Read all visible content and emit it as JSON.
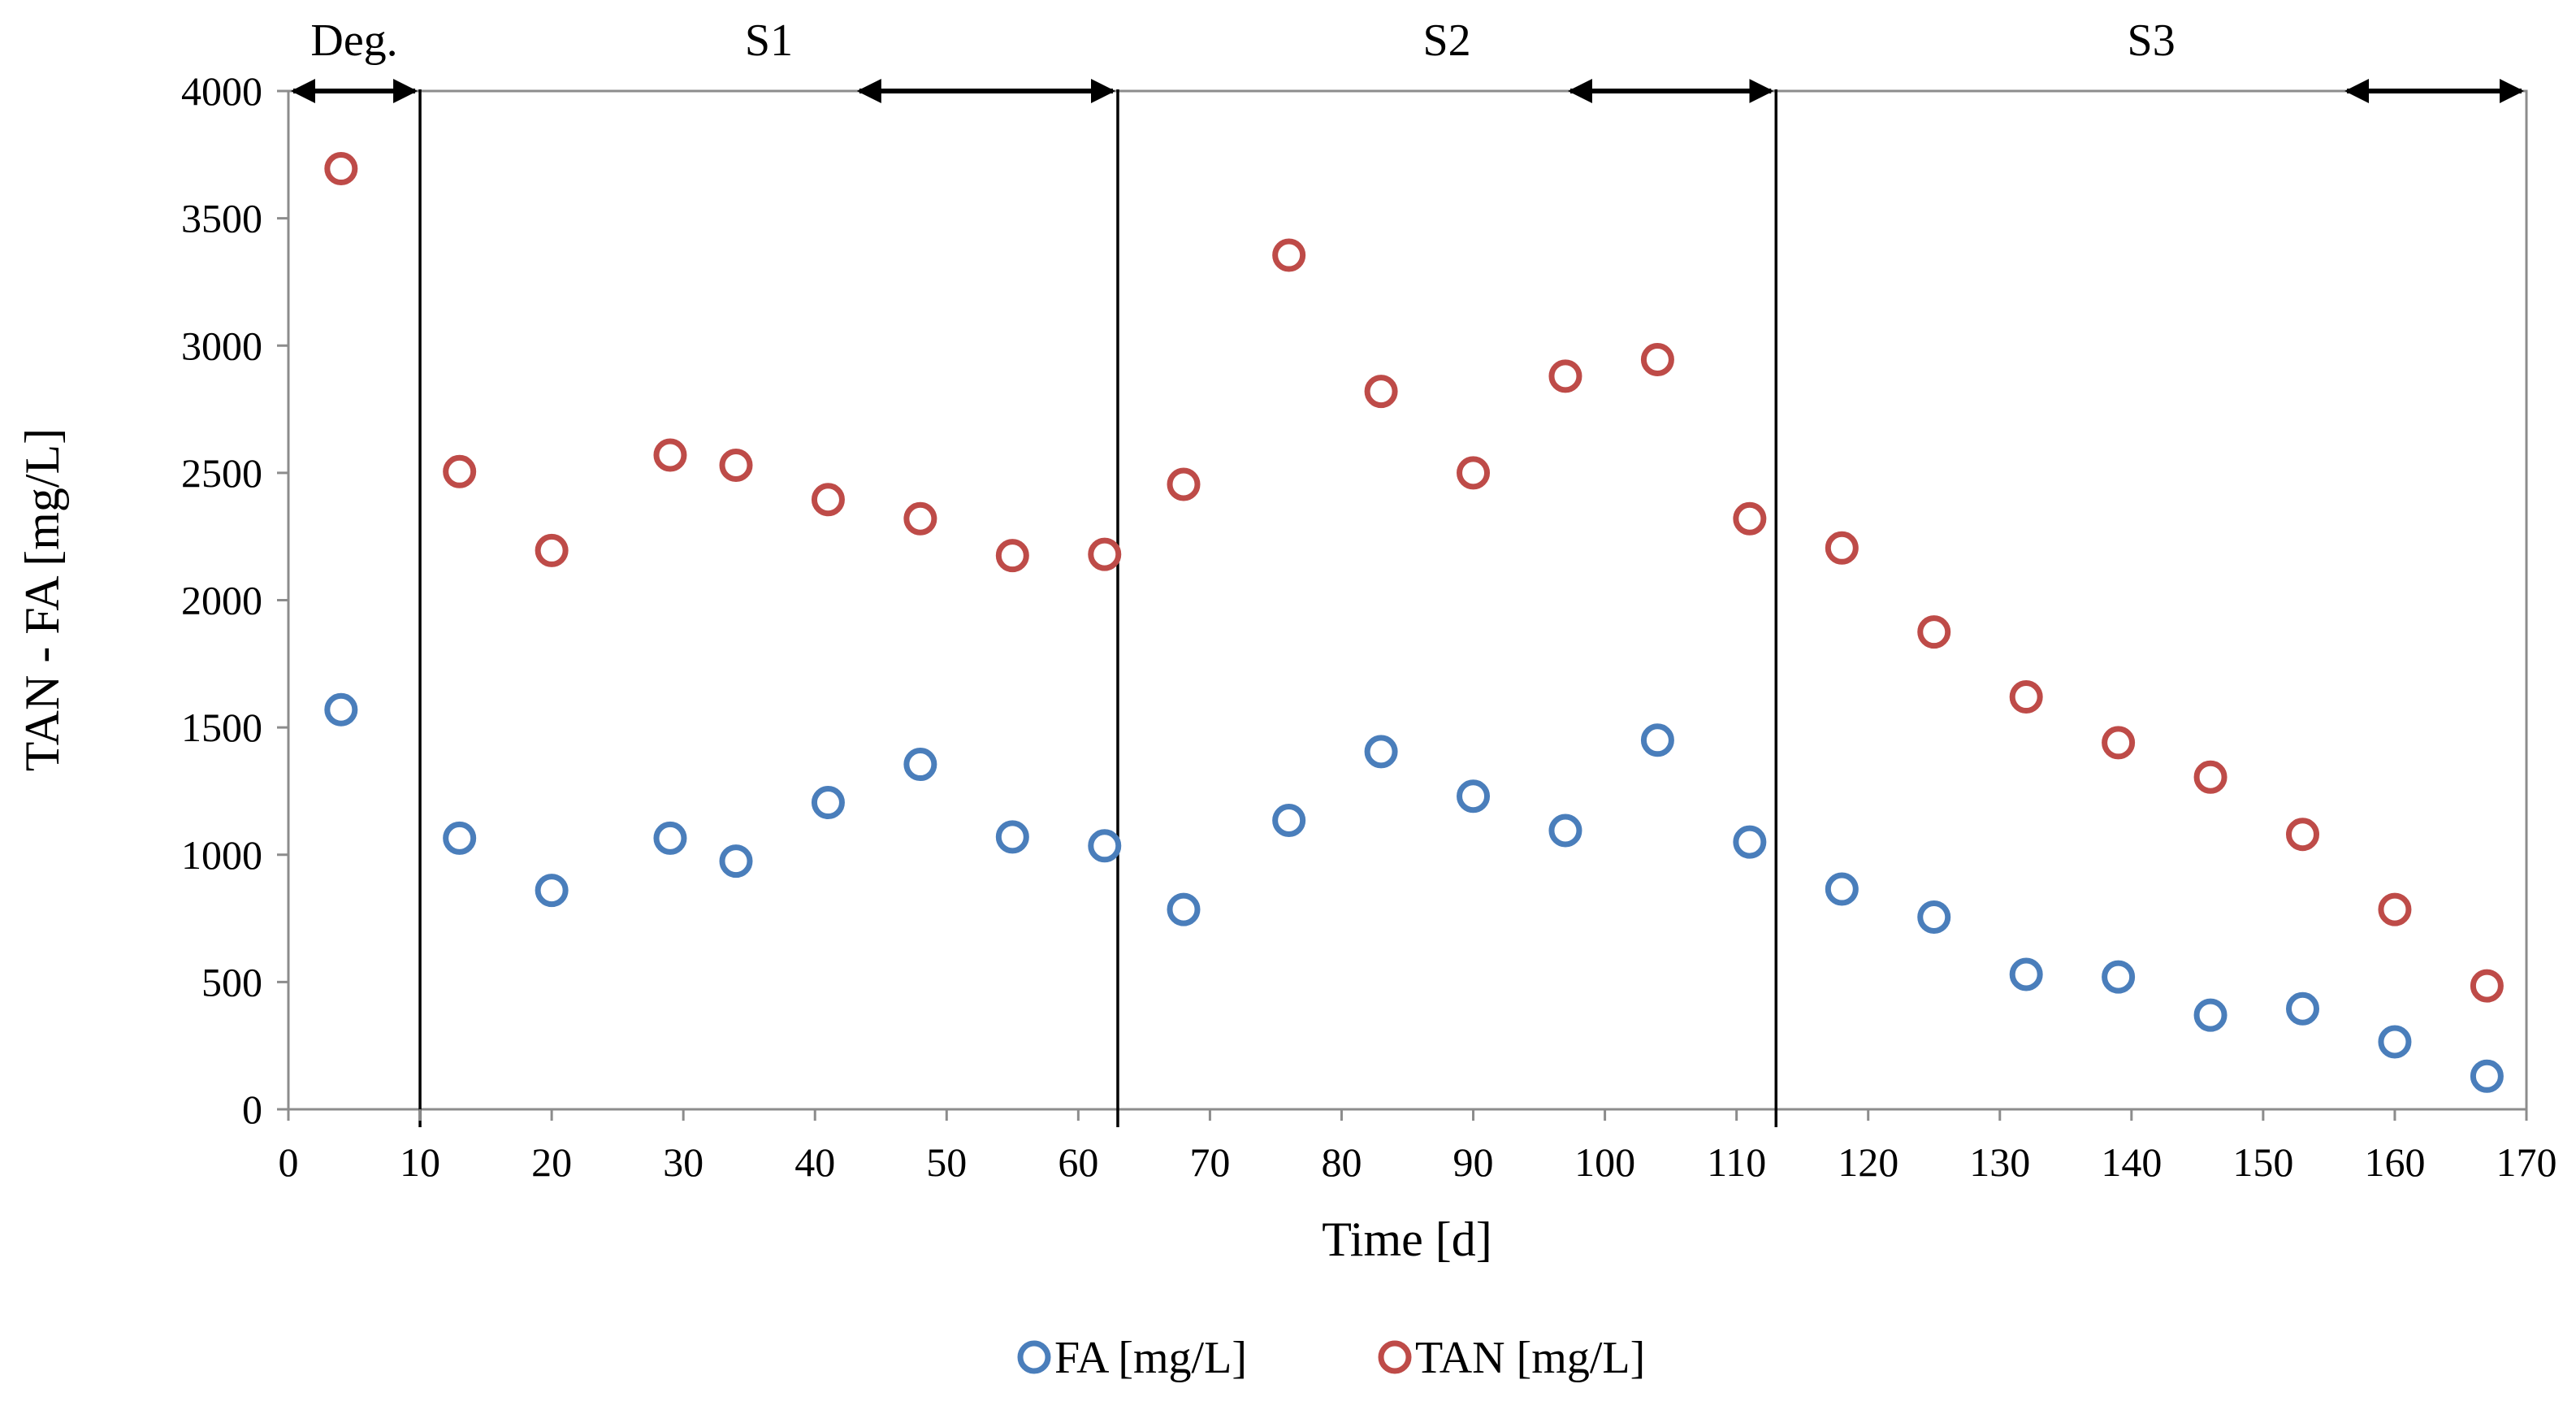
{
  "chart_data": {
    "type": "scatter",
    "title": "",
    "xlabel": "Time [d]",
    "ylabel": "TAN - FA [mg/L]",
    "xlim": [
      0,
      170
    ],
    "ylim": [
      0,
      4000
    ],
    "x_ticks": [
      "0",
      "10",
      "20",
      "30",
      "40",
      "50",
      "60",
      "70",
      "80",
      "90",
      "100",
      "110",
      "120",
      "130",
      "140",
      "150",
      "160",
      "170"
    ],
    "y_ticks": [
      "0",
      "500",
      "1000",
      "1500",
      "2000",
      "2500",
      "3000",
      "3500",
      "4000"
    ],
    "grid": false,
    "legend_position": "bottom-center",
    "series": [
      {
        "name": "FA [mg/L]",
        "color": "#4a7ebb",
        "marker": "hollow-circle",
        "points": [
          [
            4,
            1570
          ],
          [
            13,
            1065
          ],
          [
            20,
            860
          ],
          [
            29,
            1065
          ],
          [
            34,
            975
          ],
          [
            41,
            1205
          ],
          [
            48,
            1355
          ],
          [
            55,
            1070
          ],
          [
            62,
            1035
          ],
          [
            68,
            785
          ],
          [
            76,
            1135
          ],
          [
            83,
            1405
          ],
          [
            90,
            1230
          ],
          [
            97,
            1095
          ],
          [
            104,
            1450
          ],
          [
            111,
            1050
          ],
          [
            118,
            865
          ],
          [
            125,
            755
          ],
          [
            132,
            530
          ],
          [
            139,
            520
          ],
          [
            146,
            370
          ],
          [
            153,
            395
          ],
          [
            160,
            265
          ],
          [
            167,
            130
          ]
        ]
      },
      {
        "name": "TAN [mg/L]",
        "color": "#be4b48",
        "marker": "hollow-circle",
        "points": [
          [
            4,
            3695
          ],
          [
            13,
            2505
          ],
          [
            20,
            2195
          ],
          [
            29,
            2570
          ],
          [
            34,
            2530
          ],
          [
            41,
            2395
          ],
          [
            48,
            2320
          ],
          [
            55,
            2175
          ],
          [
            62,
            2180
          ],
          [
            68,
            2455
          ],
          [
            76,
            3355
          ],
          [
            83,
            2820
          ],
          [
            90,
            2500
          ],
          [
            97,
            2880
          ],
          [
            104,
            2945
          ],
          [
            111,
            2320
          ],
          [
            118,
            2205
          ],
          [
            125,
            1875
          ],
          [
            132,
            1620
          ],
          [
            139,
            1440
          ],
          [
            146,
            1305
          ],
          [
            153,
            1080
          ],
          [
            160,
            785
          ],
          [
            167,
            485
          ]
        ]
      }
    ],
    "phase_dividers": [
      10,
      63,
      113
    ],
    "phases": [
      {
        "label": "Deg.",
        "arrow": [
          0,
          10
        ]
      },
      {
        "label": "S1",
        "arrow": [
          43,
          63
        ]
      },
      {
        "label": "S2",
        "arrow": [
          97,
          113
        ]
      },
      {
        "label": "S3",
        "arrow": [
          156,
          170
        ]
      }
    ]
  }
}
